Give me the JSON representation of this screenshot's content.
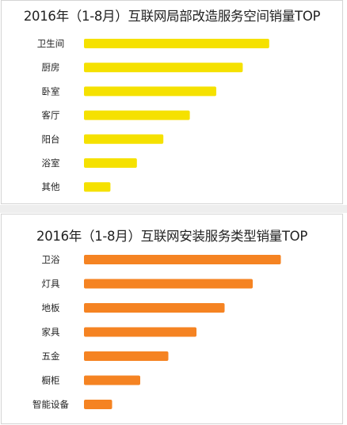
{
  "chart_data": [
    {
      "type": "bar",
      "orientation": "horizontal",
      "title": "2016年（1-8月）互联网局部改造服务空间销量TOP",
      "categories": [
        "卫生间",
        "厨房",
        "卧室",
        "客厅",
        "阳台",
        "浴室",
        "其他"
      ],
      "values": [
        7,
        6,
        5,
        4,
        3,
        2,
        1
      ],
      "color": "#f5e100",
      "axes_visible": false,
      "grid": false,
      "legend": "none"
    },
    {
      "type": "bar",
      "orientation": "horizontal",
      "title": "2016年（1-8月）互联网安装服务类型销量TOP",
      "categories": [
        "卫浴",
        "灯具",
        "地板",
        "家具",
        "五金",
        "橱柜",
        "智能设备"
      ],
      "values": [
        7,
        6,
        5,
        4,
        3,
        2,
        1
      ],
      "color": "#f58322",
      "axes_visible": false,
      "grid": false,
      "legend": "none"
    }
  ]
}
